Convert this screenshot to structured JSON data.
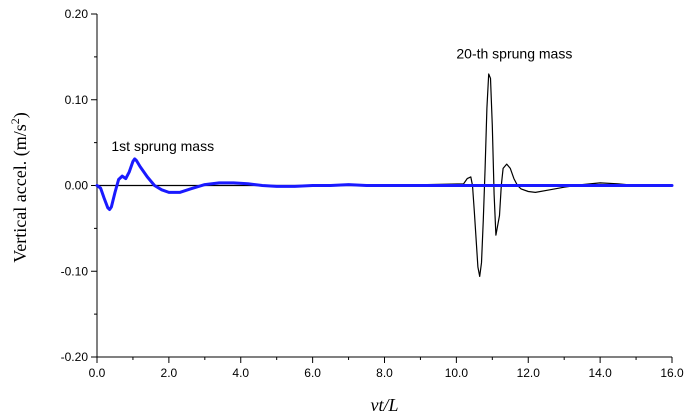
{
  "chart_data": {
    "type": "line",
    "title": "",
    "xlabel": "vt/L",
    "ylabel": {
      "main": "Vertical accel. (m/s",
      "sup": "2",
      "close": ")"
    },
    "xlim": [
      0,
      16
    ],
    "ylim": [
      -0.2,
      0.2
    ],
    "x_ticks": [
      "0.0",
      "2.0",
      "4.0",
      "6.0",
      "8.0",
      "10.0",
      "12.0",
      "14.0",
      "16.0"
    ],
    "y_ticks": [
      "-0.20",
      "-0.10",
      "0.00",
      "0.10",
      "0.20"
    ],
    "grid": false,
    "zero_line": true,
    "annotations": [
      {
        "text": "1st sprung mass",
        "x": 0.4,
        "y": 0.04
      },
      {
        "text": "20-th sprung mass",
        "x": 10.0,
        "y": 0.148
      }
    ],
    "series": [
      {
        "color": "#1a1aff",
        "x": [
          0,
          0.1,
          0.2,
          0.3,
          0.35,
          0.4,
          0.5,
          0.6,
          0.7,
          0.8,
          0.9,
          1.0,
          1.05,
          1.1,
          1.2,
          1.4,
          1.6,
          1.8,
          2.0,
          2.3,
          2.6,
          3.0,
          3.4,
          3.8,
          4.2,
          4.6,
          5.0,
          5.5,
          6.0,
          6.5,
          7.0,
          7.5,
          8.0,
          9.0,
          10.0,
          11.0,
          12.0,
          13.0,
          14.0,
          15.0,
          16.0
        ],
        "y": [
          0.0,
          -0.003,
          -0.015,
          -0.026,
          -0.028,
          -0.025,
          -0.008,
          0.007,
          0.011,
          0.008,
          0.016,
          0.028,
          0.031,
          0.029,
          0.022,
          0.01,
          0.0,
          -0.005,
          -0.008,
          -0.008,
          -0.004,
          0.001,
          0.003,
          0.003,
          0.002,
          0.0,
          -0.001,
          -0.001,
          0.0,
          0.0,
          0.001,
          0.0,
          0.0,
          0.0,
          0.0,
          0.0,
          0.0,
          0.0,
          0.0,
          0.0,
          0.0
        ]
      },
      {
        "color": "#000000",
        "x": [
          0,
          2,
          4,
          6,
          8,
          10.2,
          10.3,
          10.4,
          10.45,
          10.5,
          10.6,
          10.65,
          10.7,
          10.75,
          10.8,
          10.85,
          10.9,
          10.95,
          11.0,
          11.05,
          11.1,
          11.2,
          11.25,
          11.3,
          11.4,
          11.5,
          11.6,
          11.7,
          11.8,
          12.0,
          12.2,
          12.6,
          13.0,
          13.5,
          14.0,
          14.5,
          15.0,
          16.0
        ],
        "y": [
          0,
          0,
          0,
          0,
          0,
          0.002,
          0.008,
          0.01,
          0.0,
          -0.03,
          -0.095,
          -0.106,
          -0.09,
          -0.04,
          0.02,
          0.09,
          0.13,
          0.125,
          0.07,
          -0.01,
          -0.058,
          -0.035,
          0.0,
          0.02,
          0.025,
          0.02,
          0.008,
          0.0,
          -0.004,
          -0.007,
          -0.008,
          -0.005,
          -0.002,
          0.001,
          0.003,
          0.002,
          0.0,
          0.0
        ]
      }
    ]
  }
}
